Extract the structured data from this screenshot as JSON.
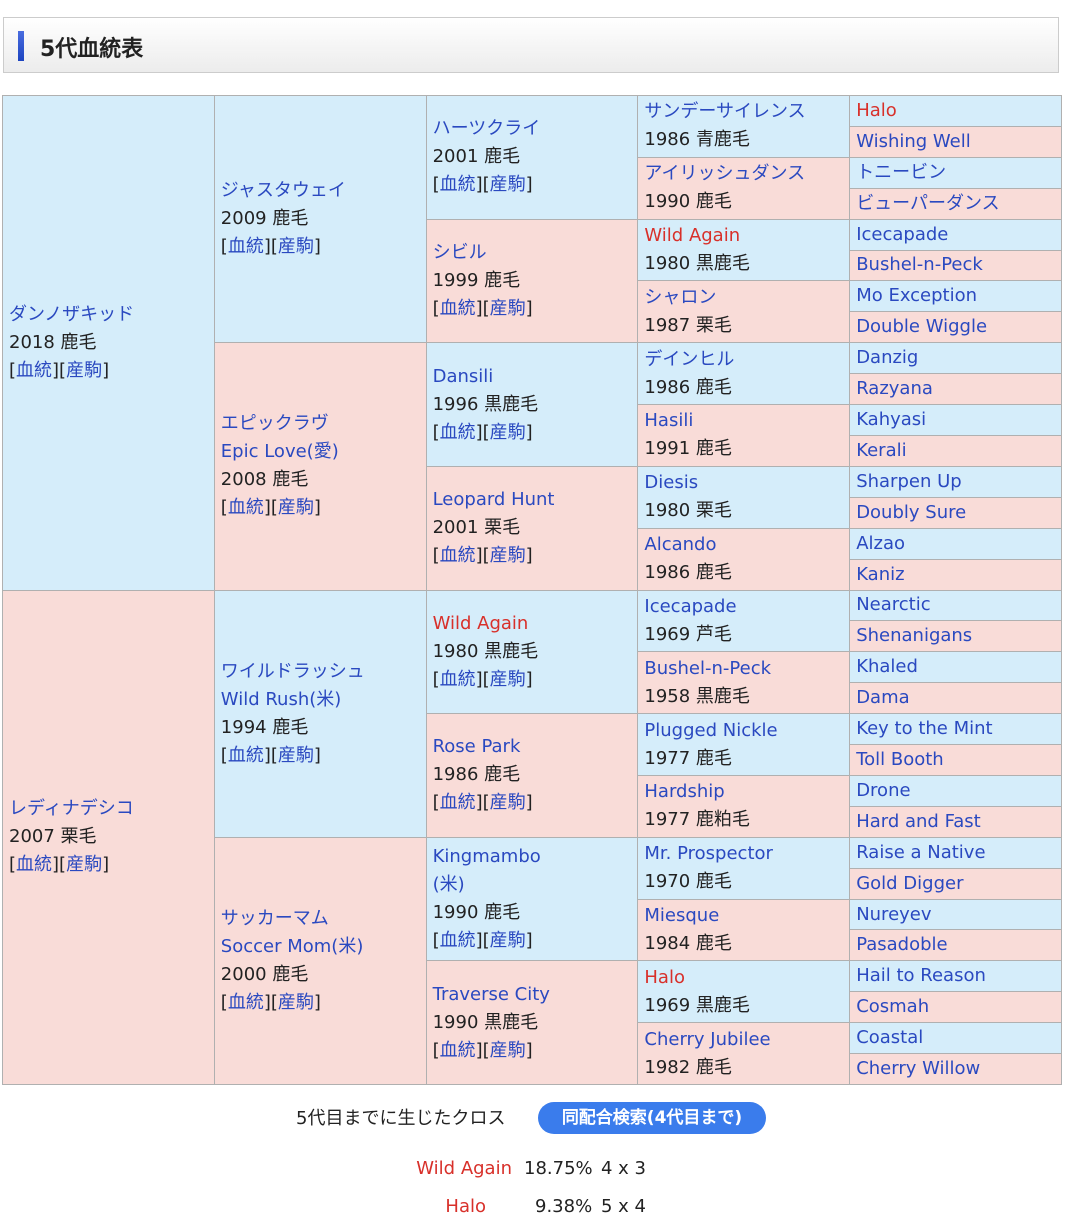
{
  "title": "5代血統表",
  "link_labels": {
    "pedigree": "血統",
    "progeny": "産駒"
  },
  "gen1": [
    {
      "name": "ダンノザキッド",
      "info": "2018 鹿毛"
    },
    {
      "name": "レディナデシコ",
      "info": "2007 栗毛"
    }
  ],
  "gen2": [
    {
      "name": "ジャスタウェイ",
      "info": "2009 鹿毛"
    },
    {
      "name": "エピックラヴ",
      "alt": "Epic Love(愛)",
      "info": "2008 鹿毛"
    },
    {
      "name": "ワイルドラッシュ",
      "alt": "Wild Rush(米)",
      "info": "1994 鹿毛"
    },
    {
      "name": "サッカーマム",
      "alt": "Soccer Mom(米)",
      "info": "2000 鹿毛"
    }
  ],
  "gen3": [
    {
      "name": "ハーツクライ",
      "info": "2001 鹿毛"
    },
    {
      "name": "シビル",
      "info": "1999 鹿毛"
    },
    {
      "name": "Dansili",
      "info": "1996 黒鹿毛"
    },
    {
      "name": "Leopard Hunt",
      "info": "2001 栗毛"
    },
    {
      "name": "Wild Again",
      "info": "1980 黒鹿毛",
      "red": true
    },
    {
      "name": "Rose Park",
      "info": "1986 鹿毛"
    },
    {
      "name": "Kingmambo",
      "alt": "(米)",
      "info": "1990 鹿毛"
    },
    {
      "name": "Traverse City",
      "info": "1990 黒鹿毛"
    }
  ],
  "gen4": [
    {
      "name": "サンデーサイレンス",
      "info": "1986 青鹿毛"
    },
    {
      "name": "アイリッシュダンス",
      "info": "1990 鹿毛"
    },
    {
      "name": "Wild Again",
      "info": "1980 黒鹿毛",
      "red": true
    },
    {
      "name": "シャロン",
      "info": "1987 栗毛"
    },
    {
      "name": "デインヒル",
      "info": "1986 鹿毛"
    },
    {
      "name": "Hasili",
      "info": "1991 鹿毛"
    },
    {
      "name": "Diesis",
      "info": "1980 栗毛"
    },
    {
      "name": "Alcando",
      "info": "1986 鹿毛"
    },
    {
      "name": "Icecapade",
      "info": "1969 芦毛"
    },
    {
      "name": "Bushel-n-Peck",
      "info": "1958 黒鹿毛"
    },
    {
      "name": "Plugged Nickle",
      "info": "1977 鹿毛"
    },
    {
      "name": "Hardship",
      "info": "1977 鹿粕毛"
    },
    {
      "name": "Mr. Prospector",
      "info": "1970 鹿毛"
    },
    {
      "name": "Miesque",
      "info": "1984 鹿毛"
    },
    {
      "name": "Halo",
      "info": "1969 黒鹿毛",
      "red": true
    },
    {
      "name": "Cherry Jubilee",
      "info": "1982 鹿毛"
    }
  ],
  "gen5": [
    {
      "name": "Halo",
      "red": true
    },
    {
      "name": "Wishing Well"
    },
    {
      "name": "トニービン"
    },
    {
      "name": "ビューパーダンス"
    },
    {
      "name": "Icecapade"
    },
    {
      "name": "Bushel-n-Peck"
    },
    {
      "name": "Mo Exception"
    },
    {
      "name": "Double Wiggle"
    },
    {
      "name": "Danzig"
    },
    {
      "name": "Razyana"
    },
    {
      "name": "Kahyasi"
    },
    {
      "name": "Kerali"
    },
    {
      "name": "Sharpen Up"
    },
    {
      "name": "Doubly Sure"
    },
    {
      "name": "Alzao"
    },
    {
      "name": "Kaniz"
    },
    {
      "name": "Nearctic"
    },
    {
      "name": "Shenanigans"
    },
    {
      "name": "Khaled"
    },
    {
      "name": "Dama"
    },
    {
      "name": "Key to the Mint"
    },
    {
      "name": "Toll Booth"
    },
    {
      "name": "Drone"
    },
    {
      "name": "Hard and Fast"
    },
    {
      "name": "Raise a Native"
    },
    {
      "name": "Gold Digger"
    },
    {
      "name": "Nureyev"
    },
    {
      "name": "Pasadoble"
    },
    {
      "name": "Hail to Reason"
    },
    {
      "name": "Cosmah"
    },
    {
      "name": "Coastal"
    },
    {
      "name": "Cherry Willow"
    }
  ],
  "cross": {
    "label": "5代目までに生じたクロス",
    "button": "同配合検索(4代目まで)",
    "items": [
      {
        "name": "Wild Again",
        "pct": "18.75%",
        "gen": "4 x 3"
      },
      {
        "name": "Halo",
        "pct": "9.38%",
        "gen": "5 x 4"
      }
    ]
  },
  "colors": {
    "sire_bg": "#d5edfa",
    "dam_bg": "#f9dcd8",
    "link": "#2a49c0",
    "cross_red": "#d8302a",
    "button": "#3a7cec"
  }
}
